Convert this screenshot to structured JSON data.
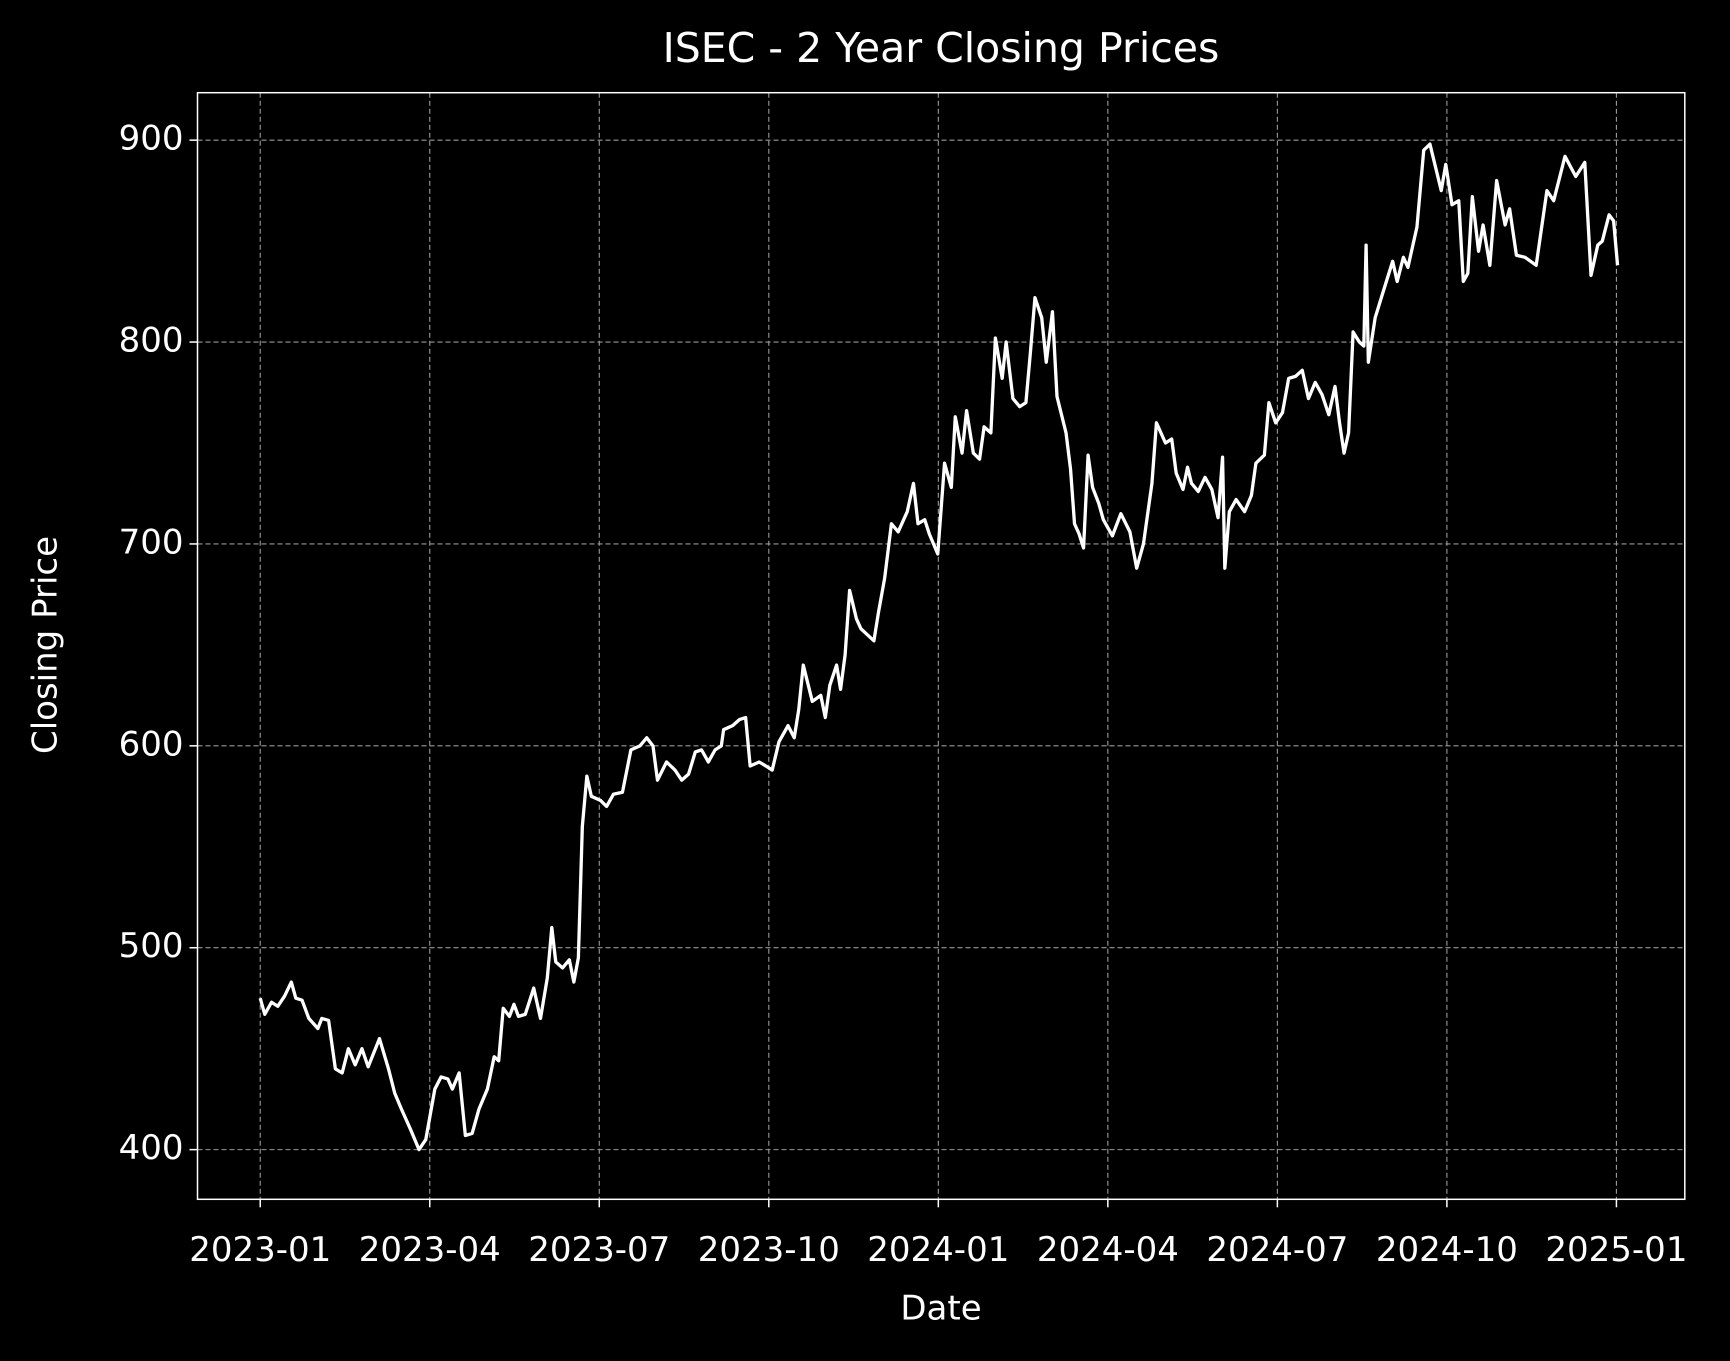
{
  "chart_data": {
    "type": "line",
    "title": "ISEC - 2 Year Closing Prices",
    "x_label": "Date",
    "y_label": "Closing Price",
    "color": "#ffffff",
    "grid": true,
    "xlim": [
      -1.11,
      25.21
    ],
    "xticks": [
      {
        "value": 0,
        "label": "2023-01"
      },
      {
        "value": 3,
        "label": "2023-04"
      },
      {
        "value": 6,
        "label": "2023-07"
      },
      {
        "value": 9,
        "label": "2023-10"
      },
      {
        "value": 12,
        "label": "2024-01"
      },
      {
        "value": 15,
        "label": "2024-04"
      },
      {
        "value": 18,
        "label": "2024-07"
      },
      {
        "value": 21,
        "label": "2024-10"
      },
      {
        "value": 24,
        "label": "2025-01"
      }
    ],
    "ylim": [
      375.4,
      923.5
    ],
    "yticks": [
      400,
      500,
      600,
      700,
      800,
      900
    ],
    "x": [
      0,
      0.08,
      0.2,
      0.31,
      0.43,
      0.55,
      0.63,
      0.74,
      0.86,
      1.02,
      1.09,
      1.21,
      1.33,
      1.45,
      1.56,
      1.68,
      1.8,
      1.91,
      2.11,
      2.27,
      2.38,
      2.5,
      2.66,
      2.81,
      2.93,
      3.09,
      3.2,
      3.32,
      3.4,
      3.52,
      3.63,
      3.75,
      3.87,
      4.02,
      4.14,
      4.22,
      4.3,
      4.41,
      4.49,
      4.57,
      4.69,
      4.84,
      4.96,
      5.08,
      5.16,
      5.23,
      5.35,
      5.47,
      5.55,
      5.63,
      5.7,
      5.78,
      5.86,
      6.02,
      6.13,
      6.25,
      6.41,
      6.56,
      6.72,
      6.84,
      6.95,
      7.03,
      7.19,
      7.34,
      7.46,
      7.58,
      7.7,
      7.81,
      7.93,
      8.05,
      8.16,
      8.2,
      8.36,
      8.48,
      8.59,
      8.67,
      8.83,
      8.95,
      9.06,
      9.18,
      9.34,
      9.45,
      9.53,
      9.61,
      9.77,
      9.92,
      10,
      10.08,
      10.2,
      10.27,
      10.35,
      10.43,
      10.55,
      10.63,
      10.86,
      10.94,
      11.05,
      11.17,
      11.29,
      11.45,
      11.56,
      11.64,
      11.76,
      11.84,
      11.99,
      12.11,
      12.23,
      12.3,
      12.42,
      12.5,
      12.62,
      12.73,
      12.81,
      12.93,
      13.01,
      13.13,
      13.2,
      13.32,
      13.44,
      13.55,
      13.63,
      13.71,
      13.83,
      13.91,
      14.02,
      14.1,
      14.26,
      14.34,
      14.41,
      14.49,
      14.57,
      14.65,
      14.73,
      14.84,
      14.92,
      15.08,
      15.23,
      15.39,
      15.51,
      15.63,
      15.78,
      15.86,
      16.02,
      16.13,
      16.21,
      16.33,
      16.41,
      16.48,
      16.6,
      16.72,
      16.84,
      16.95,
      17.03,
      17.07,
      17.15,
      17.27,
      17.42,
      17.54,
      17.62,
      17.77,
      17.85,
      17.97,
      18.09,
      18.2,
      18.32,
      18.44,
      18.55,
      18.67,
      18.79,
      18.91,
      19.02,
      19.1,
      19.18,
      19.26,
      19.34,
      19.45,
      19.53,
      19.57,
      19.61,
      19.73,
      19.84,
      20.04,
      20.12,
      20.23,
      20.31,
      20.47,
      20.59,
      20.7,
      20.9,
      20.98,
      21.09,
      21.21,
      21.29,
      21.37,
      21.45,
      21.56,
      21.64,
      21.76,
      21.88,
      22.03,
      22.11,
      22.23,
      22.38,
      22.58,
      22.77,
      22.89,
      23.09,
      23.28,
      23.44,
      23.55,
      23.67,
      23.75,
      23.87,
      23.95,
      24.02
    ],
    "values": [
      475,
      467,
      473,
      471,
      476,
      483,
      475,
      474,
      465,
      460,
      465,
      464,
      440,
      438,
      450,
      442,
      450,
      441,
      455,
      440,
      428,
      420,
      410,
      400,
      405,
      430,
      436,
      435,
      430,
      438,
      407,
      408,
      420,
      430,
      446,
      444,
      470,
      466,
      472,
      466,
      467,
      480,
      465,
      485,
      510,
      493,
      490,
      494,
      483,
      495,
      560,
      585,
      575,
      573,
      570,
      576,
      577,
      598,
      600,
      604,
      600,
      583,
      592,
      588,
      583,
      586,
      597,
      598,
      592,
      598,
      600,
      608,
      610,
      613,
      614,
      590,
      592,
      590,
      588,
      602,
      610,
      604,
      618,
      640,
      622,
      625,
      614,
      630,
      640,
      628,
      645,
      677,
      663,
      658,
      652,
      666,
      683,
      710,
      706,
      716,
      730,
      710,
      712,
      705,
      695,
      740,
      728,
      763,
      745,
      766,
      745,
      742,
      758,
      755,
      802,
      782,
      800,
      772,
      768,
      770,
      795,
      822,
      812,
      790,
      815,
      773,
      755,
      737,
      710,
      705,
      698,
      744,
      728,
      720,
      712,
      704,
      715,
      706,
      688,
      700,
      730,
      760,
      750,
      752,
      735,
      727,
      738,
      730,
      726,
      733,
      727,
      713,
      743,
      688,
      716,
      722,
      716,
      724,
      740,
      744,
      770,
      760,
      765,
      782,
      783,
      786,
      772,
      780,
      774,
      764,
      778,
      760,
      745,
      755,
      805,
      800,
      798,
      848,
      790,
      812,
      822,
      840,
      830,
      842,
      837,
      857,
      895,
      898,
      875,
      888,
      868,
      870,
      830,
      834,
      872,
      845,
      858,
      838,
      880,
      858,
      866,
      843,
      842,
      838,
      875,
      870,
      892,
      882,
      889,
      833,
      848,
      850,
      863,
      860,
      838
    ]
  }
}
